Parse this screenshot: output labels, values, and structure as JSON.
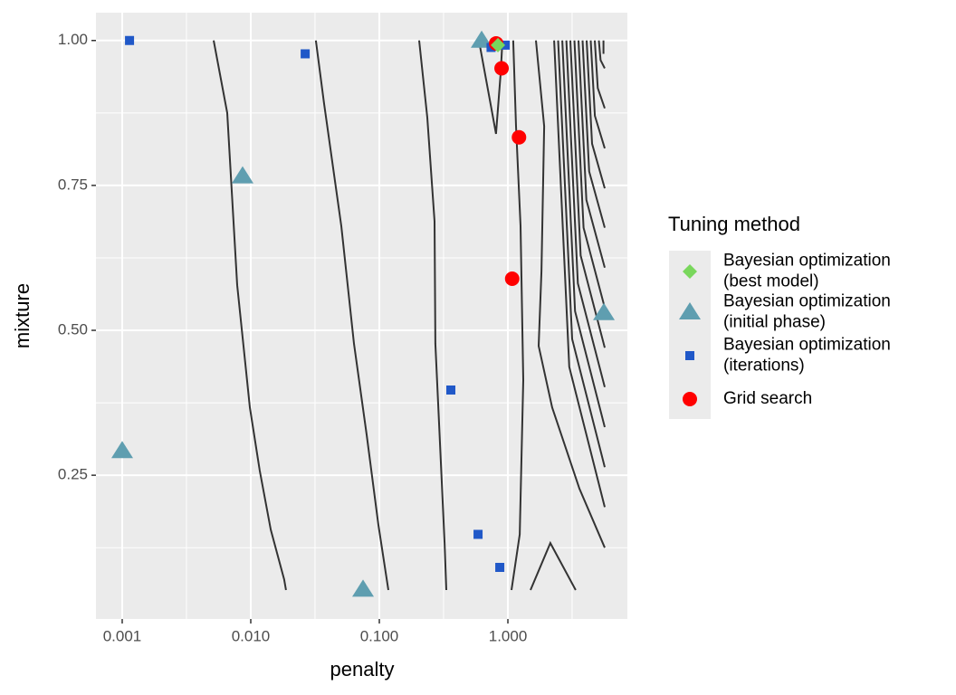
{
  "chart_data": {
    "type": "scatter",
    "x_label": "penalty",
    "y_label": "mixture",
    "log_x": true,
    "xlim": [
      0.000625,
      8.5
    ],
    "ylim": [
      0.002,
      1.048
    ],
    "xticks": [
      0.001,
      {
        "value": 0.01,
        "label": "0.010"
      },
      {
        "value": 0.1,
        "label": "0.100"
      },
      {
        "value": 1,
        "label": "1.000"
      }
    ],
    "yticks": [
      {
        "value": 0.25,
        "label": "0.25"
      },
      {
        "value": 0.5,
        "label": "0.50"
      },
      0.75,
      {
        "value": 1,
        "label": "1.00"
      }
    ],
    "x_minor_grid": [
      0.00316,
      0.0316,
      0.316,
      3.16
    ],
    "y_minor_grid": [
      0.125,
      0.375,
      0.625,
      0.875
    ],
    "grid": true,
    "legend_title": "Tuning method",
    "legend_position": "right",
    "contour_color": "#333333",
    "contours": [
      {
        "x": [
          0.00514,
          0.00656,
          0.00784,
          0.00984,
          0.01175,
          0.0143,
          0.0182,
          0.0188
        ],
        "y": [
          1.0,
          0.875,
          0.578,
          0.367,
          0.258,
          0.156,
          0.07,
          0.052
        ]
      },
      {
        "x": [
          0.0321,
          0.0372,
          0.0506,
          0.0635,
          0.0797,
          0.0984,
          0.1175
        ],
        "y": [
          1.0,
          0.891,
          0.68,
          0.477,
          0.32,
          0.164,
          0.052
        ]
      },
      {
        "x": [
          0.204,
          0.236,
          0.269,
          0.273,
          0.292,
          0.322,
          0.332
        ],
        "y": [
          1.0,
          0.867,
          0.688,
          0.477,
          0.336,
          0.133,
          0.052
        ]
      },
      {
        "x": [
          0.595,
          0.723,
          0.809,
          0.879,
          0.907
        ],
        "y": [
          1.0,
          0.898,
          0.839,
          0.945,
          1.0
        ]
      },
      {
        "x": [
          1.1,
          1.156,
          1.255,
          1.318,
          1.236,
          1.067
        ],
        "y": [
          1.0,
          0.852,
          0.68,
          0.414,
          0.148,
          0.052
        ]
      },
      {
        "x": [
          1.653,
          1.914,
          1.824,
          1.736,
          2.21,
          3.6,
          5.67
        ],
        "y": [
          1.0,
          0.852,
          0.602,
          0.473,
          0.367,
          0.227,
          0.125
        ]
      },
      {
        "x": [
          1.5,
          2.14,
          3.37
        ],
        "y": [
          0.052,
          0.133,
          0.052
        ]
      },
      {
        "x": [
          2.29,
          3.0,
          5.67
        ],
        "y": [
          1.0,
          0.437,
          0.195
        ]
      },
      {
        "x": [
          2.46,
          3.16,
          5.67
        ],
        "y": [
          1.0,
          0.485,
          0.264
        ]
      },
      {
        "x": [
          2.65,
          3.33,
          5.67
        ],
        "y": [
          1.0,
          0.533,
          0.333
        ]
      },
      {
        "x": [
          2.85,
          3.5,
          5.67
        ],
        "y": [
          1.0,
          0.581,
          0.402
        ]
      },
      {
        "x": [
          3.06,
          3.68,
          5.67
        ],
        "y": [
          1.0,
          0.629,
          0.47
        ]
      },
      {
        "x": [
          3.29,
          3.88,
          5.67
        ],
        "y": [
          1.0,
          0.677,
          0.539
        ]
      },
      {
        "x": [
          3.54,
          4.08,
          5.67
        ],
        "y": [
          1.0,
          0.725,
          0.608
        ]
      },
      {
        "x": [
          3.81,
          4.29,
          5.67
        ],
        "y": [
          1.0,
          0.774,
          0.677
        ]
      },
      {
        "x": [
          4.1,
          4.52,
          5.67
        ],
        "y": [
          1.0,
          0.822,
          0.745
        ]
      },
      {
        "x": [
          4.41,
          4.75,
          5.67
        ],
        "y": [
          1.0,
          0.87,
          0.814
        ]
      },
      {
        "x": [
          4.74,
          5.0,
          5.67
        ],
        "y": [
          1.0,
          0.918,
          0.883
        ]
      },
      {
        "x": [
          5.1,
          5.26,
          5.67
        ],
        "y": [
          1.0,
          0.966,
          0.952
        ]
      },
      {
        "x": [
          5.54,
          5.54
        ],
        "y": [
          1.0,
          0.977
        ]
      }
    ],
    "series": [
      {
        "name": "Bayesian optimization\n(best model)",
        "marker": "diamond",
        "color": "#79d75c",
        "x": [
          0.837
        ],
        "y": [
          0.992
        ]
      },
      {
        "name": "Bayesian optimization\n(initial phase)",
        "marker": "triangle",
        "color": "#5f9eb0",
        "x": [
          0.625,
          0.00864,
          5.58,
          0.001,
          0.0747
        ],
        "y": [
          1.0,
          0.766,
          0.53,
          0.292,
          0.053
        ]
      },
      {
        "name": "Bayesian optimization\n(iterations)",
        "marker": "square",
        "color": "#2058c8",
        "x": [
          0.00114,
          0.0265,
          0.74,
          0.953,
          0.36,
          0.586,
          0.865
        ],
        "y": [
          1.0,
          0.977,
          0.988,
          0.992,
          0.397,
          0.148,
          0.091
        ]
      },
      {
        "name": "Grid search",
        "marker": "circle",
        "color": "#ff0000",
        "x": [
          0.81,
          0.893,
          1.22,
          1.08
        ],
        "y": [
          0.995,
          0.952,
          0.833,
          0.589
        ]
      }
    ]
  }
}
